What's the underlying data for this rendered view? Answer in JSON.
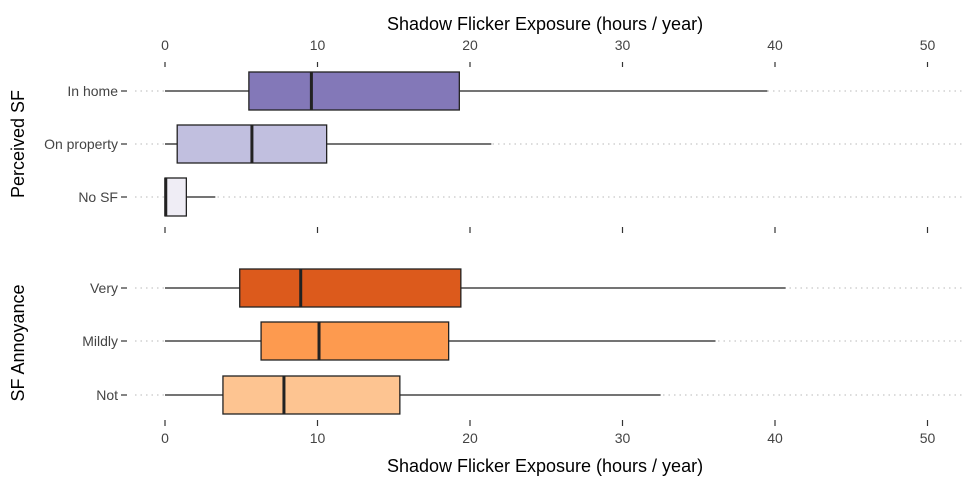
{
  "chart_data": {
    "type": "boxplot",
    "x_title": "Shadow Flicker Exposure (hours / year)",
    "xlim": [
      0,
      52
    ],
    "x_ticks": [
      0,
      10,
      20,
      30,
      40,
      50
    ],
    "tick_labels": [
      "0",
      "10",
      "20",
      "30",
      "40",
      "50"
    ],
    "grid": "dotted horizontal",
    "panels": [
      {
        "title": "Perceived SF",
        "groups": [
          {
            "label": "In home",
            "min": 0,
            "q1": 5.5,
            "median": 9.6,
            "q3": 19.3,
            "max": 39.5,
            "color": "#8378b8"
          },
          {
            "label": "On property",
            "min": 0,
            "q1": 0.8,
            "median": 5.7,
            "q3": 10.6,
            "max": 21.4,
            "color": "#c1bfdf"
          },
          {
            "label": "No SF",
            "min": 0,
            "q1": 0,
            "median": 0.05,
            "q3": 1.4,
            "max": 3.3,
            "color": "#efedf5"
          }
        ]
      },
      {
        "title": "SF Annoyance",
        "groups": [
          {
            "label": "Very",
            "min": 0,
            "q1": 4.9,
            "median": 8.9,
            "q3": 19.4,
            "max": 40.7,
            "color": "#dc5a1c"
          },
          {
            "label": "Mildly",
            "min": 0,
            "q1": 6.3,
            "median": 10.1,
            "q3": 18.6,
            "max": 36.1,
            "color": "#fd9a4f"
          },
          {
            "label": "Not",
            "min": 0,
            "q1": 3.8,
            "median": 7.8,
            "q3": 15.4,
            "max": 32.5,
            "color": "#fdc491"
          }
        ]
      }
    ]
  }
}
